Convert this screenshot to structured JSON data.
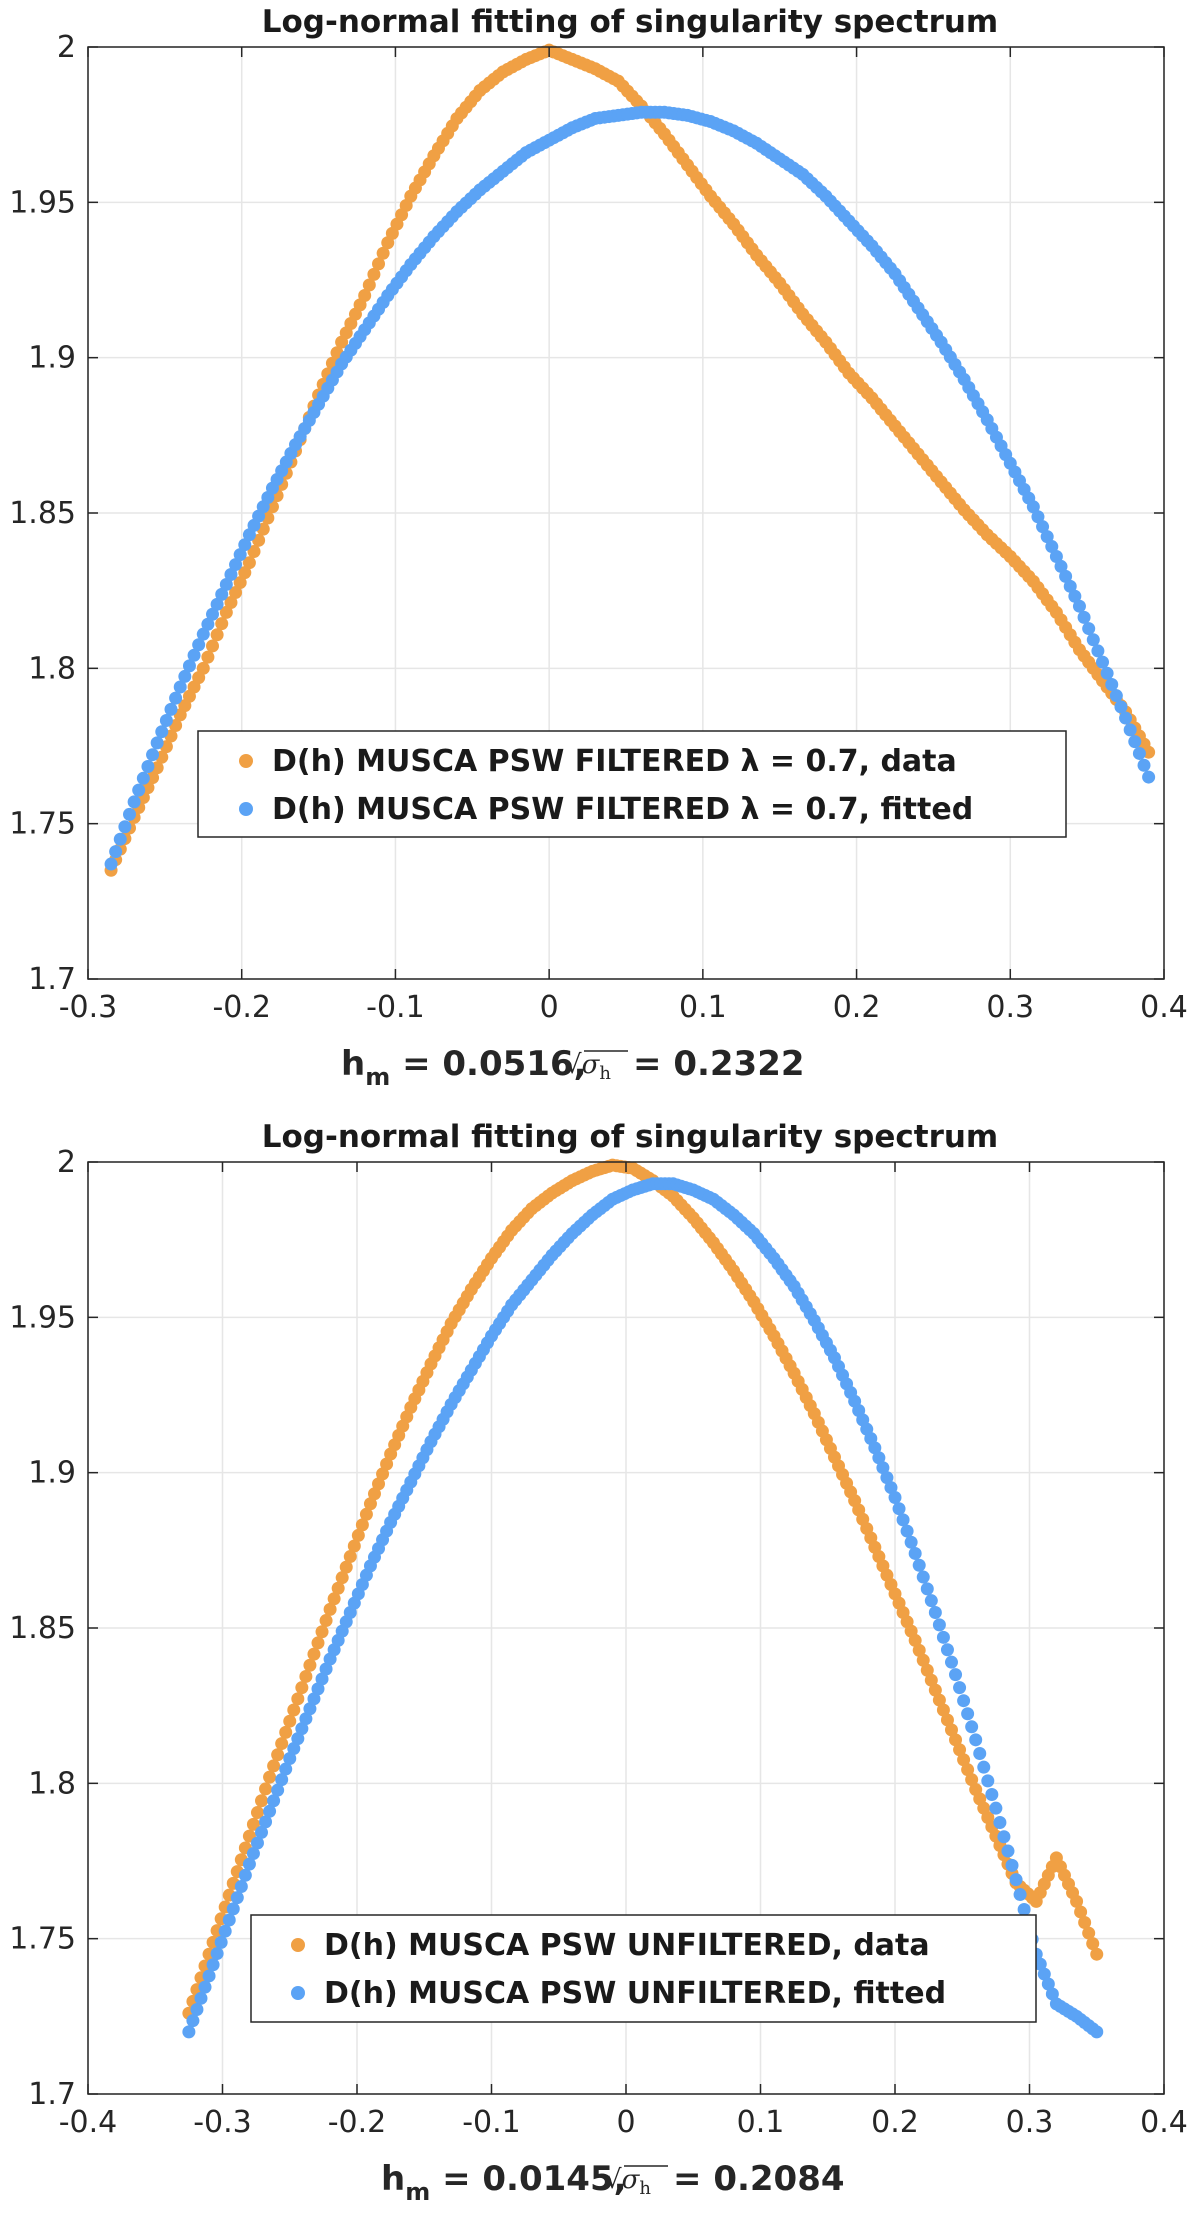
{
  "chart_data": [
    {
      "type": "scatter",
      "title": "Log-normal fitting of singularity spectrum",
      "xlabel": {
        "main": "h",
        "sub": "m",
        "mid": " = 0.0516,",
        "sqrt_sym": "√",
        "sigma": "σ",
        "sigma_sub": "h",
        "tail": "= 0.2322"
      },
      "ylabel": "",
      "xlim": [
        -0.3,
        0.4
      ],
      "ylim": [
        1.7,
        2.0
      ],
      "xticks": [
        "-0.3",
        "-0.2",
        "-0.1",
        "0",
        "0.1",
        "0.2",
        "0.3",
        "0.4"
      ],
      "yticks": [
        "1.7",
        "1.75",
        "1.8",
        "1.85",
        "1.9",
        "1.95",
        "2"
      ],
      "grid": true,
      "legend_position": "lower-center",
      "series": [
        {
          "name": "D(h) MUSCA PSW FILTERED λ = 0.7, data",
          "color": "#f0a044",
          "x": [
            -0.285,
            -0.27,
            -0.255,
            -0.24,
            -0.225,
            -0.21,
            -0.195,
            -0.18,
            -0.165,
            -0.15,
            -0.135,
            -0.12,
            -0.105,
            -0.09,
            -0.075,
            -0.06,
            -0.045,
            -0.03,
            -0.015,
            0.0,
            0.015,
            0.03,
            0.045,
            0.06,
            0.075,
            0.09,
            0.105,
            0.12,
            0.135,
            0.15,
            0.165,
            0.18,
            0.195,
            0.21,
            0.225,
            0.24,
            0.255,
            0.27,
            0.285,
            0.3,
            0.315,
            0.33,
            0.345,
            0.36,
            0.375,
            0.39
          ],
          "y": [
            1.735,
            1.752,
            1.768,
            1.785,
            1.8,
            1.818,
            1.834,
            1.852,
            1.87,
            1.888,
            1.905,
            1.92,
            1.937,
            1.952,
            1.965,
            1.977,
            1.986,
            1.992,
            1.996,
            1.999,
            1.996,
            1.993,
            1.989,
            1.981,
            1.972,
            1.962,
            1.952,
            1.943,
            1.933,
            1.924,
            1.914,
            1.905,
            1.895,
            1.887,
            1.878,
            1.869,
            1.86,
            1.851,
            1.843,
            1.836,
            1.828,
            1.818,
            1.806,
            1.796,
            1.786,
            1.773
          ]
        },
        {
          "name": "D(h) MUSCA PSW FILTERED λ = 0.7, fitted",
          "color": "#5ba3f5",
          "x": [
            -0.285,
            -0.27,
            -0.255,
            -0.24,
            -0.225,
            -0.21,
            -0.195,
            -0.18,
            -0.165,
            -0.15,
            -0.135,
            -0.12,
            -0.105,
            -0.09,
            -0.075,
            -0.06,
            -0.045,
            -0.03,
            -0.015,
            0.0,
            0.015,
            0.03,
            0.045,
            0.06,
            0.075,
            0.09,
            0.105,
            0.12,
            0.135,
            0.15,
            0.165,
            0.18,
            0.195,
            0.21,
            0.225,
            0.24,
            0.255,
            0.27,
            0.285,
            0.3,
            0.315,
            0.33,
            0.345,
            0.36,
            0.375,
            0.39
          ],
          "y": [
            1.737,
            1.757,
            1.776,
            1.794,
            1.811,
            1.827,
            1.843,
            1.858,
            1.872,
            1.885,
            1.898,
            1.909,
            1.92,
            1.93,
            1.939,
            1.947,
            1.954,
            1.96,
            1.966,
            1.97,
            1.974,
            1.977,
            1.978,
            1.979,
            1.979,
            1.978,
            1.976,
            1.973,
            1.969,
            1.964,
            1.959,
            1.952,
            1.944,
            1.936,
            1.927,
            1.916,
            1.905,
            1.893,
            1.88,
            1.866,
            1.852,
            1.836,
            1.82,
            1.802,
            1.784,
            1.765
          ]
        }
      ]
    },
    {
      "type": "scatter",
      "title": "Log-normal fitting of singularity spectrum",
      "xlabel": {
        "main": "h",
        "sub": "m",
        "mid": " = 0.0145,",
        "sqrt_sym": "√",
        "sigma": "σ",
        "sigma_sub": "h",
        "tail": "= 0.2084"
      },
      "ylabel": "",
      "xlim": [
        -0.4,
        0.4
      ],
      "ylim": [
        1.7,
        2.0
      ],
      "xticks": [
        "-0.4",
        "-0.3",
        "-0.2",
        "-0.1",
        "0",
        "0.1",
        "0.2",
        "0.3",
        "0.4"
      ],
      "yticks": [
        "1.7",
        "1.75",
        "1.8",
        "1.85",
        "1.9",
        "1.95",
        "2"
      ],
      "grid": true,
      "legend_position": "lower-center",
      "series": [
        {
          "name": "D(h) MUSCA PSW UNFILTERED, data",
          "color": "#f0a044",
          "x": [
            -0.325,
            -0.31,
            -0.295,
            -0.28,
            -0.265,
            -0.25,
            -0.235,
            -0.22,
            -0.205,
            -0.19,
            -0.175,
            -0.16,
            -0.145,
            -0.13,
            -0.115,
            -0.1,
            -0.085,
            -0.07,
            -0.055,
            -0.04,
            -0.025,
            -0.01,
            0.005,
            0.02,
            0.035,
            0.05,
            0.065,
            0.08,
            0.095,
            0.11,
            0.125,
            0.14,
            0.155,
            0.17,
            0.185,
            0.2,
            0.215,
            0.23,
            0.245,
            0.26,
            0.275,
            0.29,
            0.305,
            0.32,
            0.335,
            0.35
          ],
          "y": [
            1.726,
            1.745,
            1.764,
            1.783,
            1.802,
            1.82,
            1.838,
            1.856,
            1.873,
            1.89,
            1.906,
            1.921,
            1.935,
            1.948,
            1.959,
            1.969,
            1.978,
            1.985,
            1.99,
            1.994,
            1.997,
            1.999,
            1.998,
            1.994,
            1.989,
            1.982,
            1.974,
            1.965,
            1.955,
            1.944,
            1.932,
            1.919,
            1.905,
            1.891,
            1.876,
            1.861,
            1.846,
            1.83,
            1.814,
            1.798,
            1.783,
            1.768,
            1.762,
            1.776,
            1.762,
            1.745
          ]
        },
        {
          "name": "D(h) MUSCA PSW UNFILTERED, fitted",
          "color": "#5ba3f5",
          "x": [
            -0.325,
            -0.31,
            -0.295,
            -0.28,
            -0.265,
            -0.25,
            -0.235,
            -0.22,
            -0.205,
            -0.19,
            -0.175,
            -0.16,
            -0.145,
            -0.13,
            -0.115,
            -0.1,
            -0.085,
            -0.07,
            -0.055,
            -0.04,
            -0.025,
            -0.01,
            0.005,
            0.02,
            0.035,
            0.05,
            0.065,
            0.08,
            0.095,
            0.11,
            0.125,
            0.14,
            0.155,
            0.17,
            0.185,
            0.2,
            0.215,
            0.23,
            0.245,
            0.26,
            0.275,
            0.29,
            0.305,
            0.32,
            0.335,
            0.35
          ],
          "y": [
            1.72,
            1.738,
            1.756,
            1.774,
            1.791,
            1.808,
            1.824,
            1.84,
            1.855,
            1.87,
            1.884,
            1.897,
            1.91,
            1.922,
            1.933,
            1.944,
            1.954,
            1.962,
            1.97,
            1.977,
            1.983,
            1.988,
            1.991,
            1.993,
            1.993,
            1.991,
            1.988,
            1.983,
            1.977,
            1.969,
            1.96,
            1.949,
            1.937,
            1.923,
            1.908,
            1.892,
            1.874,
            1.855,
            1.835,
            1.814,
            1.792,
            1.769,
            1.745,
            1.729,
            1.725,
            1.72
          ]
        }
      ]
    }
  ]
}
